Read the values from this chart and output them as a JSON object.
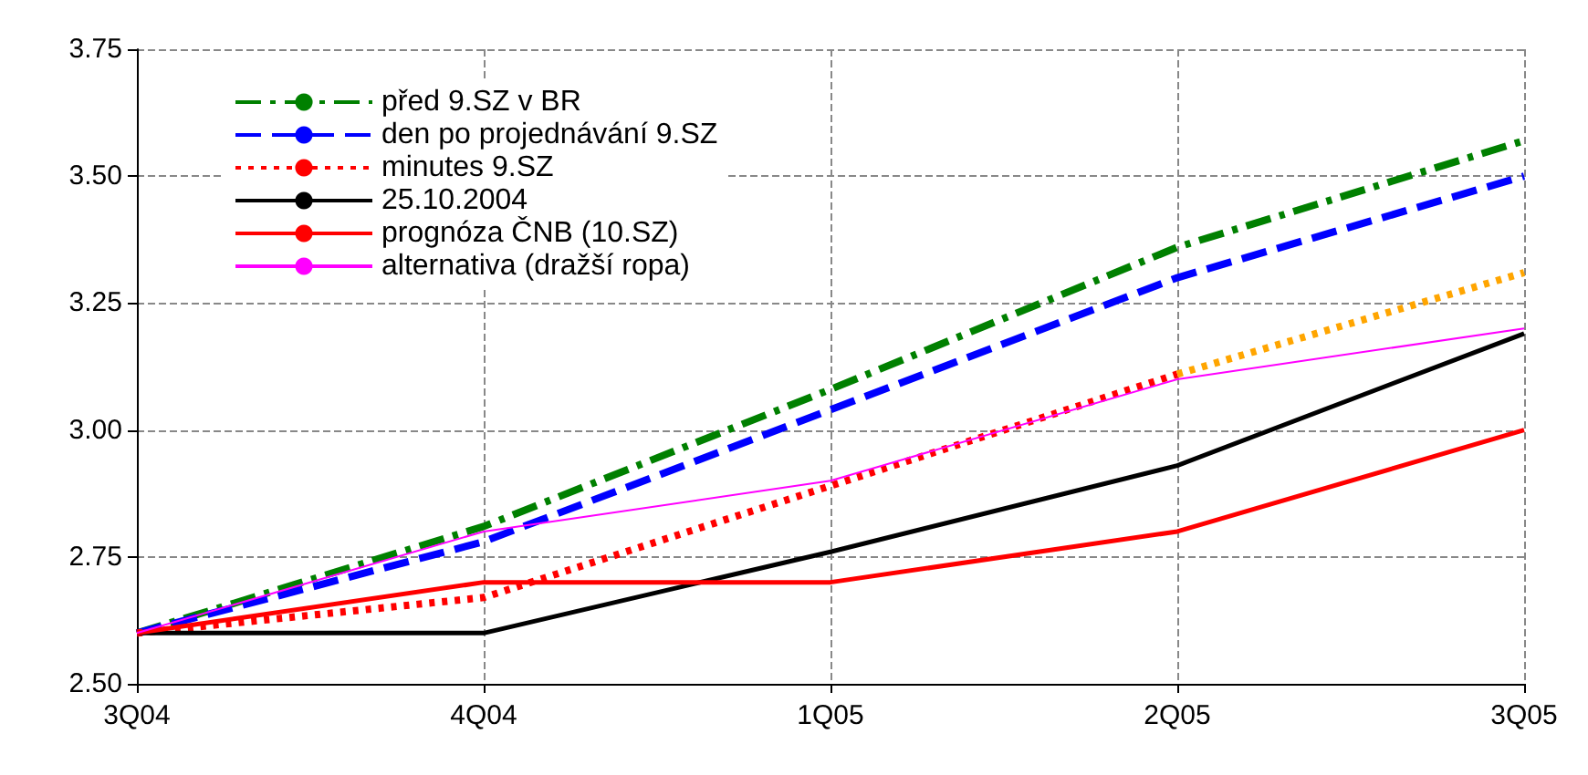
{
  "chart_data": {
    "type": "line",
    "categories": [
      "3Q04",
      "4Q04",
      "1Q05",
      "2Q05",
      "3Q05"
    ],
    "series": [
      {
        "name": "před 9.SZ v BR",
        "color": "#008000",
        "line_style": "dashdot",
        "values": [
          2.6,
          2.81,
          3.08,
          3.36,
          3.57
        ]
      },
      {
        "name": "den po projednávání 9.SZ",
        "color": "#0000ff",
        "line_style": "dashed",
        "values": [
          2.6,
          2.78,
          3.04,
          3.3,
          3.5
        ]
      },
      {
        "name": "minutes 9.SZ",
        "color": "#ff0000",
        "line_style": "dotted",
        "values": [
          2.6,
          2.67,
          2.89,
          3.11,
          null
        ]
      },
      {
        "color": "#ffa500",
        "line_style": "dotted",
        "values": [
          null,
          null,
          null,
          3.11,
          3.31
        ]
      },
      {
        "name": "25.10.2004",
        "color": "#000000",
        "line_style": "solid",
        "values": [
          2.6,
          2.6,
          2.76,
          2.93,
          3.19
        ]
      },
      {
        "name": "prognóza ČNB (10.SZ)",
        "color": "#ff0000",
        "line_style": "solid",
        "values": [
          2.6,
          2.7,
          2.7,
          2.8,
          3.0
        ]
      },
      {
        "name": "alternativa (dražší ropa)",
        "color": "#ff00ff",
        "line_style": "solid",
        "values": [
          2.6,
          2.8,
          2.9,
          3.1,
          3.2
        ]
      }
    ],
    "ylim": [
      2.5,
      3.75
    ],
    "yticks": [
      {
        "value": 2.5,
        "label": "2.50"
      },
      {
        "value": 2.75,
        "label": "2.75"
      },
      {
        "value": 3.0,
        "label": "3.00"
      },
      {
        "value": 3.25,
        "label": "3.25"
      },
      {
        "value": 3.5,
        "label": "3.50"
      },
      {
        "value": 3.75,
        "label": "3.75"
      }
    ],
    "grid": true,
    "legend": "top left",
    "marker": "none"
  }
}
